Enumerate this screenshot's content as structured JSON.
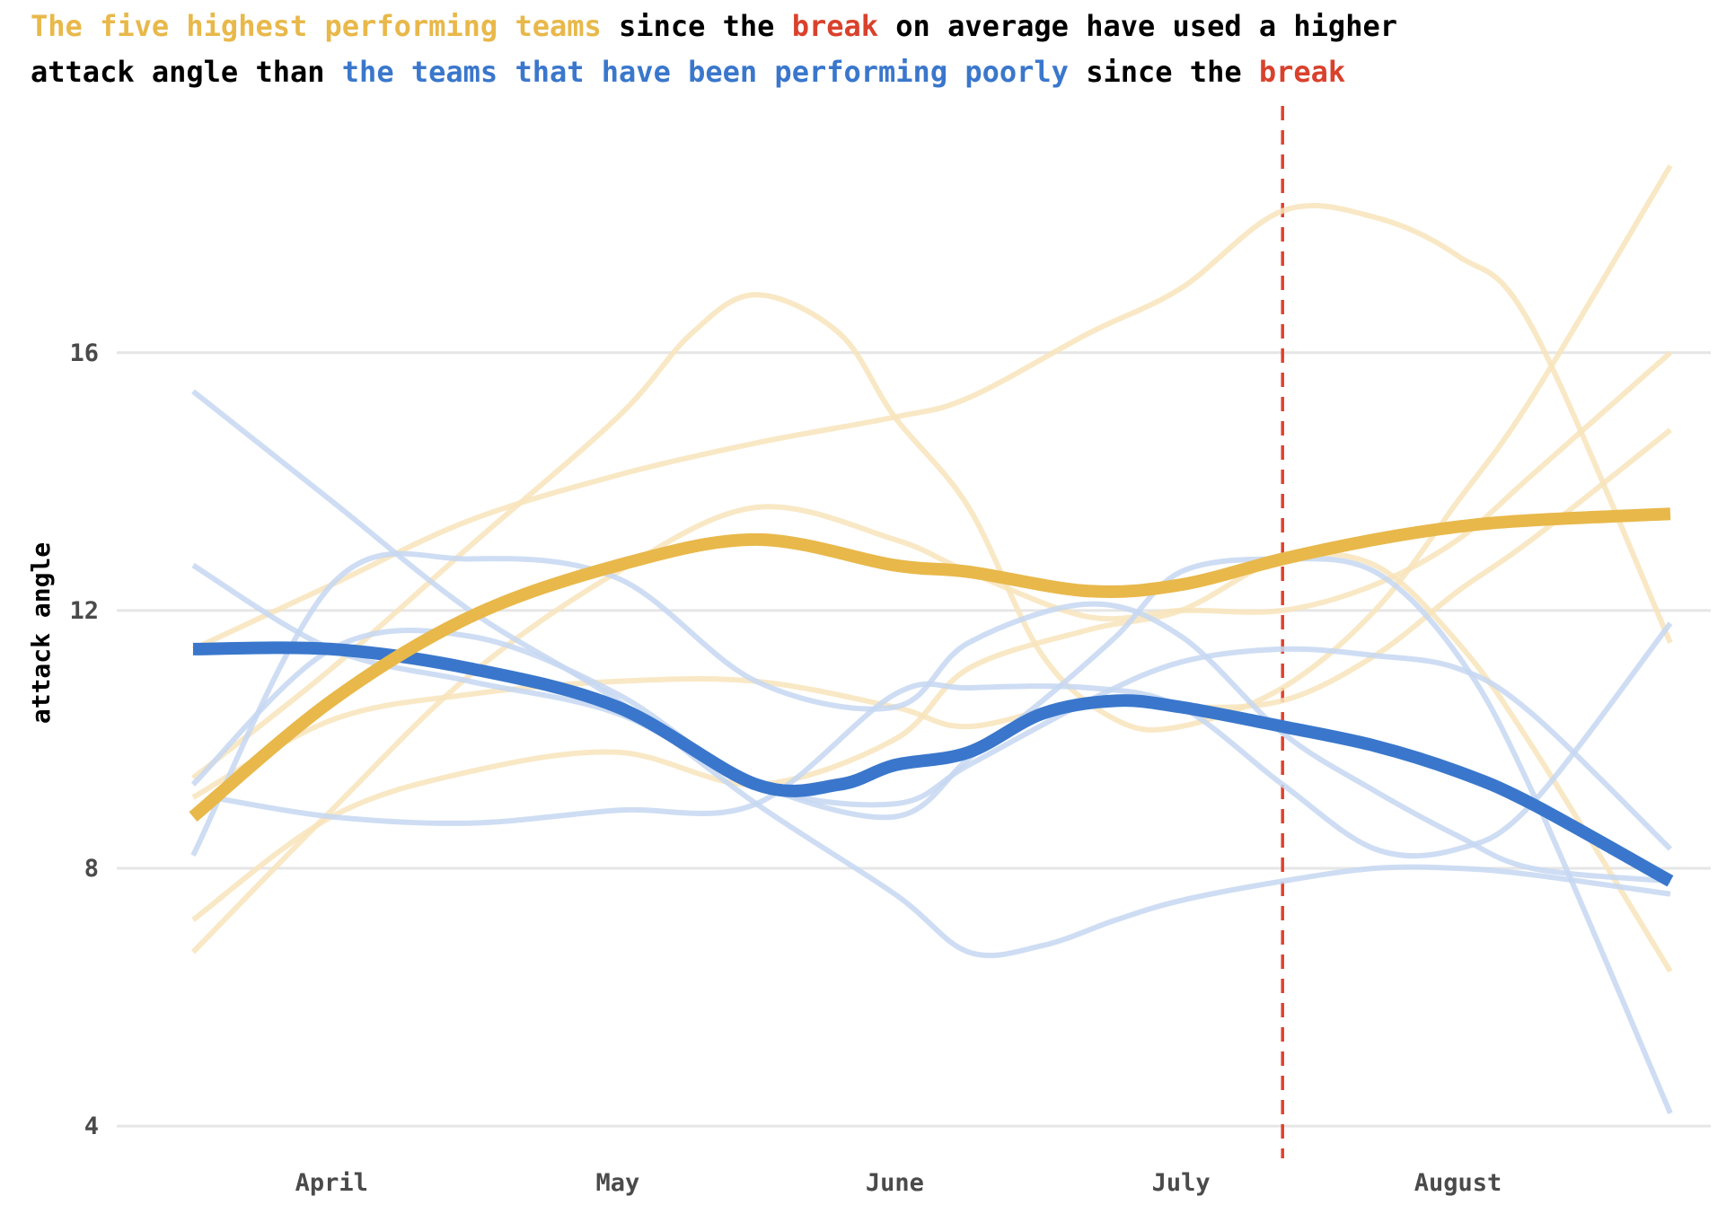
{
  "title_segments": [
    {
      "text": "The five highest performing teams",
      "color": "#e8b84a"
    },
    {
      "text": " since the ",
      "color": "#000000"
    },
    {
      "text": "break",
      "color": "#d9412c"
    },
    {
      "text": " on average have used a higher",
      "color": "#000000"
    },
    {
      "text": "attack angle than ",
      "color": "#000000",
      "newline": true
    },
    {
      "text": "the teams that have been performing poorly",
      "color": "#3a77cc"
    },
    {
      "text": " since the ",
      "color": "#000000"
    },
    {
      "text": "break",
      "color": "#d9412c"
    }
  ],
  "chart_data": {
    "type": "line",
    "title": "The five highest performing teams since the break on average have used a higher attack angle than the teams that have been performing poorly since the break",
    "xlabel": "",
    "ylabel": "attack angle",
    "x_ticks": [
      {
        "label": "April",
        "x": 25
      },
      {
        "label": "May",
        "x": 56
      },
      {
        "label": "June",
        "x": 86
      },
      {
        "label": "July",
        "x": 117
      },
      {
        "label": "August",
        "x": 147
      }
    ],
    "xlim": [
      10,
      170
    ],
    "ylim": [
      3.5,
      19.8
    ],
    "y_ticks": [
      4,
      8,
      12,
      16
    ],
    "grid": "horizontal",
    "reference_line": {
      "x": 128,
      "color": "#e0412c",
      "style": "dashed"
    },
    "colors": {
      "top_average": "#e8b84a",
      "top_team": "#f8e4bb",
      "poor_average": "#3a77cc",
      "poor_team": "#c5d7f1",
      "grid": "#e6e6e6"
    },
    "series": [
      {
        "group": "top_team",
        "points": [
          [
            10,
            11.4
          ],
          [
            25,
            12.4
          ],
          [
            40,
            13.4
          ],
          [
            56,
            14.1
          ],
          [
            71,
            14.6
          ],
          [
            86,
            15.0
          ],
          [
            94,
            15.3
          ],
          [
            107,
            16.3
          ],
          [
            117,
            17.0
          ],
          [
            128,
            18.2
          ],
          [
            138,
            18.1
          ],
          [
            147,
            17.5
          ],
          [
            155,
            16.4
          ],
          [
            170,
            11.5
          ]
        ]
      },
      {
        "group": "top_team",
        "points": [
          [
            10,
            9.4
          ],
          [
            25,
            11.1
          ],
          [
            40,
            13.0
          ],
          [
            56,
            15.0
          ],
          [
            64,
            16.3
          ],
          [
            71,
            16.9
          ],
          [
            80,
            16.3
          ],
          [
            86,
            15.0
          ],
          [
            94,
            13.6
          ],
          [
            102,
            11.3
          ],
          [
            110,
            10.3
          ],
          [
            117,
            10.2
          ],
          [
            128,
            10.8
          ],
          [
            138,
            12.0
          ],
          [
            147,
            13.7
          ],
          [
            155,
            15.3
          ],
          [
            170,
            18.9
          ]
        ]
      },
      {
        "group": "top_team",
        "points": [
          [
            10,
            6.7
          ],
          [
            25,
            8.9
          ],
          [
            40,
            11.0
          ],
          [
            56,
            12.6
          ],
          [
            71,
            13.6
          ],
          [
            86,
            13.1
          ],
          [
            94,
            12.6
          ],
          [
            107,
            11.9
          ],
          [
            117,
            12.0
          ],
          [
            128,
            12.0
          ],
          [
            138,
            12.4
          ],
          [
            147,
            13.1
          ],
          [
            155,
            14.1
          ],
          [
            170,
            16.0
          ]
        ]
      },
      {
        "group": "top_team",
        "points": [
          [
            10,
            7.2
          ],
          [
            25,
            8.8
          ],
          [
            40,
            9.5
          ],
          [
            56,
            9.8
          ],
          [
            71,
            9.3
          ],
          [
            86,
            10.0
          ],
          [
            94,
            11.1
          ],
          [
            107,
            11.7
          ],
          [
            117,
            12.0
          ],
          [
            128,
            12.8
          ],
          [
            138,
            12.7
          ],
          [
            147,
            11.5
          ],
          [
            155,
            9.9
          ],
          [
            170,
            6.4
          ]
        ]
      },
      {
        "group": "top_team",
        "points": [
          [
            10,
            9.1
          ],
          [
            25,
            10.3
          ],
          [
            40,
            10.7
          ],
          [
            56,
            10.9
          ],
          [
            71,
            10.9
          ],
          [
            86,
            10.5
          ],
          [
            94,
            10.2
          ],
          [
            107,
            10.6
          ],
          [
            117,
            10.5
          ],
          [
            128,
            10.6
          ],
          [
            138,
            11.3
          ],
          [
            147,
            12.3
          ],
          [
            155,
            13.1
          ],
          [
            170,
            14.8
          ]
        ]
      },
      {
        "group": "poor_team",
        "points": [
          [
            10,
            15.4
          ],
          [
            25,
            13.7
          ],
          [
            40,
            12.0
          ],
          [
            56,
            10.6
          ],
          [
            71,
            9.0
          ],
          [
            86,
            7.6
          ],
          [
            94,
            6.7
          ],
          [
            102,
            6.8
          ],
          [
            110,
            7.2
          ],
          [
            117,
            7.5
          ],
          [
            128,
            7.8
          ],
          [
            138,
            8.0
          ],
          [
            147,
            8.0
          ],
          [
            155,
            7.9
          ],
          [
            170,
            7.6
          ]
        ]
      },
      {
        "group": "poor_team",
        "points": [
          [
            10,
            12.7
          ],
          [
            25,
            11.4
          ],
          [
            40,
            10.9
          ],
          [
            56,
            10.4
          ],
          [
            71,
            9.3
          ],
          [
            86,
            8.8
          ],
          [
            94,
            9.7
          ],
          [
            102,
            10.6
          ],
          [
            110,
            11.6
          ],
          [
            117,
            12.6
          ],
          [
            128,
            12.8
          ],
          [
            138,
            12.6
          ],
          [
            147,
            11.3
          ],
          [
            155,
            9.2
          ],
          [
            170,
            4.2
          ]
        ]
      },
      {
        "group": "poor_team",
        "points": [
          [
            10,
            9.3
          ],
          [
            25,
            11.4
          ],
          [
            40,
            11.6
          ],
          [
            56,
            10.7
          ],
          [
            71,
            9.3
          ],
          [
            86,
            9.0
          ],
          [
            94,
            9.6
          ],
          [
            107,
            10.6
          ],
          [
            117,
            11.2
          ],
          [
            128,
            11.4
          ],
          [
            138,
            11.3
          ],
          [
            147,
            11.1
          ],
          [
            155,
            10.4
          ],
          [
            170,
            8.3
          ]
        ]
      },
      {
        "group": "poor_team",
        "points": [
          [
            12,
            9.1
          ],
          [
            25,
            8.8
          ],
          [
            40,
            8.7
          ],
          [
            56,
            8.9
          ],
          [
            71,
            9.0
          ],
          [
            86,
            10.7
          ],
          [
            94,
            10.8
          ],
          [
            107,
            10.8
          ],
          [
            117,
            10.5
          ],
          [
            128,
            9.3
          ],
          [
            138,
            8.3
          ],
          [
            147,
            8.3
          ],
          [
            155,
            9.0
          ],
          [
            170,
            11.8
          ]
        ]
      },
      {
        "group": "poor_team",
        "points": [
          [
            10,
            8.2
          ],
          [
            25,
            12.4
          ],
          [
            40,
            12.8
          ],
          [
            56,
            12.5
          ],
          [
            71,
            10.9
          ],
          [
            86,
            10.5
          ],
          [
            94,
            11.5
          ],
          [
            107,
            12.1
          ],
          [
            117,
            11.6
          ],
          [
            128,
            10.1
          ],
          [
            138,
            9.2
          ],
          [
            147,
            8.5
          ],
          [
            155,
            8.0
          ],
          [
            170,
            7.8
          ]
        ]
      },
      {
        "group": "poor_average",
        "points": [
          [
            10,
            11.4
          ],
          [
            25,
            11.4
          ],
          [
            40,
            11.1
          ],
          [
            56,
            10.5
          ],
          [
            71,
            9.3
          ],
          [
            80,
            9.3
          ],
          [
            86,
            9.6
          ],
          [
            94,
            9.8
          ],
          [
            102,
            10.4
          ],
          [
            110,
            10.6
          ],
          [
            117,
            10.5
          ],
          [
            128,
            10.2
          ],
          [
            138,
            9.9
          ],
          [
            147,
            9.5
          ],
          [
            155,
            9.0
          ],
          [
            170,
            7.8
          ]
        ]
      },
      {
        "group": "top_average",
        "points": [
          [
            10,
            8.8
          ],
          [
            25,
            10.6
          ],
          [
            40,
            11.9
          ],
          [
            56,
            12.7
          ],
          [
            71,
            13.1
          ],
          [
            86,
            12.7
          ],
          [
            94,
            12.6
          ],
          [
            107,
            12.3
          ],
          [
            117,
            12.4
          ],
          [
            128,
            12.8
          ],
          [
            138,
            13.1
          ],
          [
            147,
            13.3
          ],
          [
            155,
            13.4
          ],
          [
            170,
            13.5
          ]
        ]
      }
    ]
  }
}
